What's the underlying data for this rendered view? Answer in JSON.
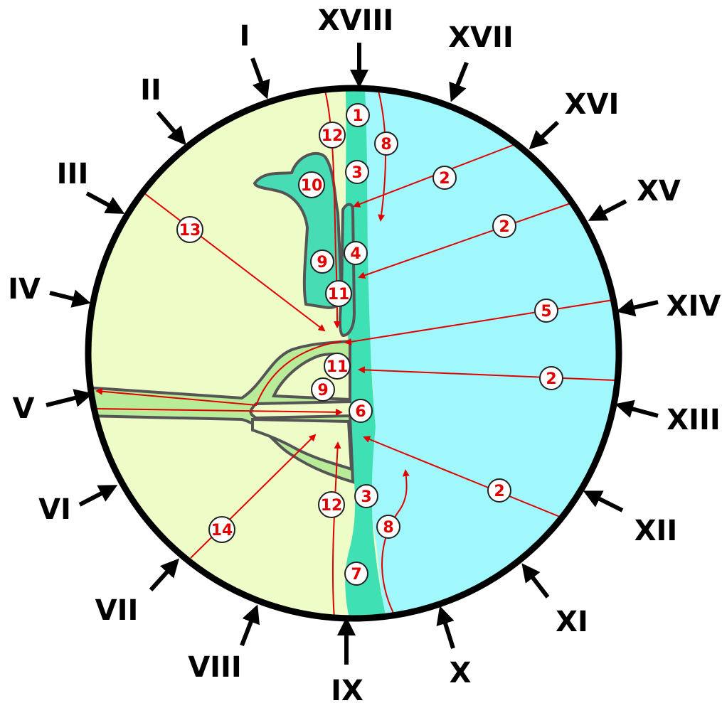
{
  "colors": {
    "land": "#eefcc8",
    "water": "#a0f8fc",
    "shore": "#3fe0b4",
    "lagoon": "#48dcb4",
    "channel": "#b8ec98",
    "outline": "#000000",
    "line": "#e00000"
  },
  "direction_labels": [
    "I",
    "II",
    "III",
    "IV",
    "V",
    "VI",
    "VII",
    "VIII",
    "IX",
    "X",
    "XI",
    "XII",
    "XIII",
    "XIV",
    "XV",
    "XVI",
    "XVII",
    "XVIII"
  ],
  "numbered_markers": [
    "1",
    "2",
    "2",
    "2",
    "2",
    "3",
    "3",
    "4",
    "5",
    "6",
    "7",
    "8",
    "8",
    "9",
    "9",
    "10",
    "11",
    "11",
    "12",
    "12",
    "13",
    "14"
  ]
}
